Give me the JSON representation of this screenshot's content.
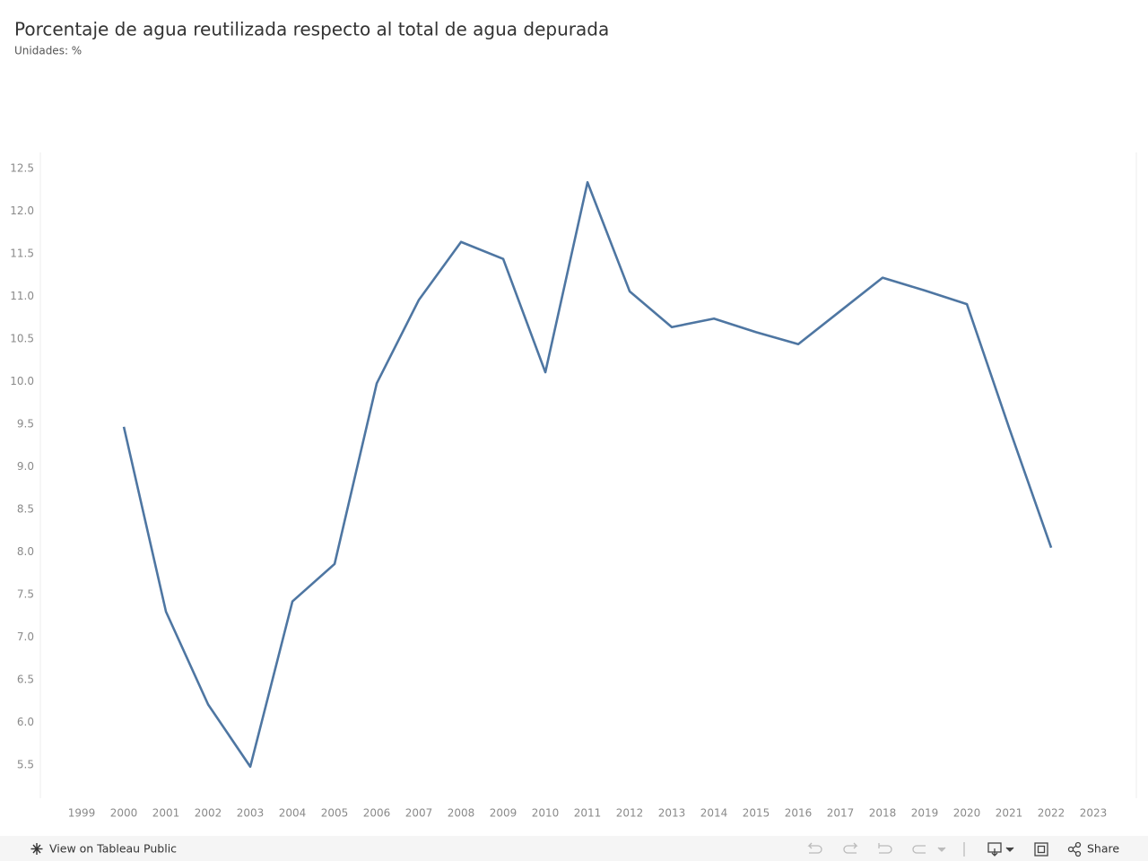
{
  "chart_data": {
    "type": "line",
    "title": "Porcentaje de agua reutilizada respecto al total de agua depurada",
    "subtitle": "Unidades: %",
    "x": [
      2000,
      2001,
      2002,
      2003,
      2004,
      2005,
      2006,
      2007,
      2008,
      2009,
      2010,
      2011,
      2012,
      2013,
      2014,
      2015,
      2016,
      2017,
      2018,
      2019,
      2020,
      2021,
      2022
    ],
    "series": [
      {
        "color": "#4e76a2",
        "values": [
          9.47,
          7.3,
          6.21,
          5.48,
          7.42,
          7.86,
          9.98,
          10.96,
          11.64,
          11.44,
          10.11,
          12.34,
          11.06,
          10.64,
          10.74,
          10.58,
          10.44,
          10.83,
          11.22,
          11.07,
          10.91,
          9.46,
          8.05
        ]
      }
    ],
    "xlim": [
      1998.02,
      2024.02
    ],
    "xticks": [
      1999,
      2000,
      2001,
      2002,
      2003,
      2004,
      2005,
      2006,
      2007,
      2008,
      2009,
      2010,
      2011,
      2012,
      2013,
      2014,
      2015,
      2016,
      2017,
      2018,
      2019,
      2020,
      2021,
      2022,
      2023
    ],
    "ylim": [
      5.11,
      12.69
    ],
    "yticks": [
      5.5,
      {
        "value": 6,
        "label": "6.0"
      },
      6.5,
      {
        "value": 7,
        "label": "7.0"
      },
      7.5,
      {
        "value": 8,
        "label": "8.0"
      },
      8.5,
      {
        "value": 9,
        "label": "9.0"
      },
      9.5,
      {
        "value": 10,
        "label": "10.0"
      },
      10.5,
      {
        "value": 11,
        "label": "11.0"
      },
      11.5,
      {
        "value": 12,
        "label": "12.0"
      },
      12.5
    ],
    "grid": false
  },
  "toolbar": {
    "view_link": "View on Tableau Public",
    "share": "Share"
  }
}
